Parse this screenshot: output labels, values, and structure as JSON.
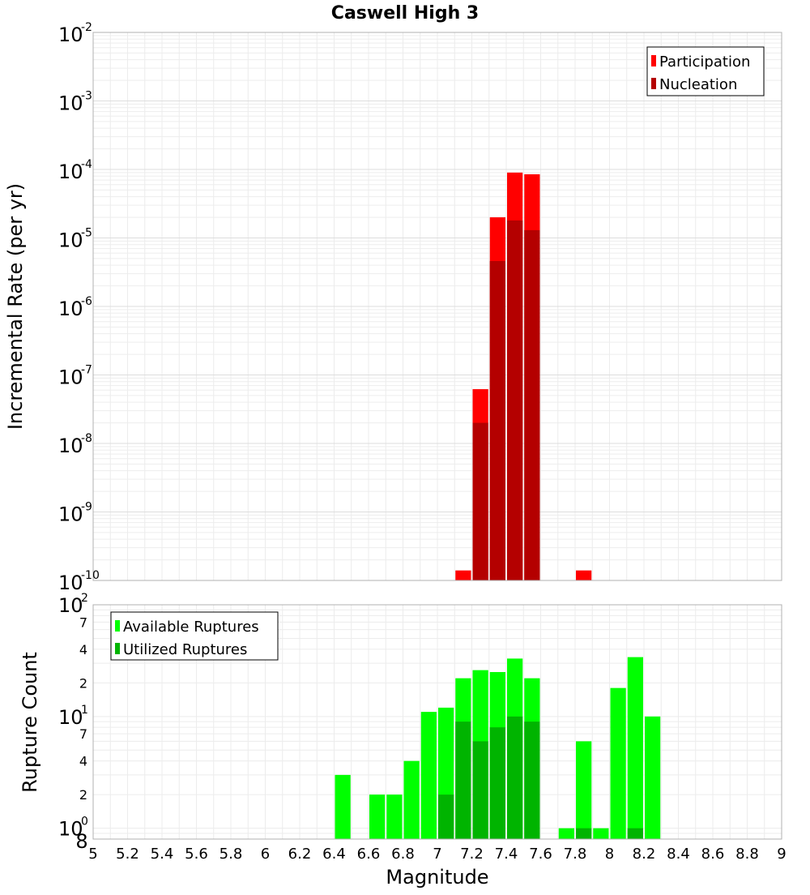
{
  "chart_data": [
    {
      "type": "bar",
      "title": "Caswell High 3",
      "xlabel": "",
      "ylabel": "Incremental Rate (per yr)",
      "yscale": "log",
      "ylim": [
        1e-10,
        0.01
      ],
      "xlim": [
        5,
        9
      ],
      "bin_width": 0.1,
      "y_ticks": [
        {
          "base": "10",
          "exp": "-10"
        },
        {
          "base": "10",
          "exp": "-9"
        },
        {
          "base": "10",
          "exp": "-8"
        },
        {
          "base": "10",
          "exp": "-7"
        },
        {
          "base": "10",
          "exp": "-6"
        },
        {
          "base": "10",
          "exp": "-5"
        },
        {
          "base": "10",
          "exp": "-4"
        },
        {
          "base": "10",
          "exp": "-3"
        },
        {
          "base": "10",
          "exp": "-2"
        }
      ],
      "legend_position": "top-right",
      "series": [
        {
          "name": "Participation",
          "color": "#ff0000",
          "x": [
            7.15,
            7.25,
            7.35,
            7.45,
            7.55,
            7.85
          ],
          "values": [
            1.4e-10,
            6.2e-08,
            2e-05,
            9e-05,
            8.5e-05,
            1.4e-10
          ]
        },
        {
          "name": "Nucleation",
          "color": "#b40000",
          "x": [
            7.25,
            7.35,
            7.45,
            7.55
          ],
          "values": [
            2e-08,
            4.6e-06,
            1.8e-05,
            1.3e-05
          ]
        }
      ]
    },
    {
      "type": "bar",
      "xlabel": "Magnitude",
      "ylabel": "Rupture Count",
      "yscale": "log",
      "ylim": [
        0.8,
        100
      ],
      "xlim": [
        5,
        9
      ],
      "bin_width": 0.1,
      "y_ticks": [
        {
          "value": 1,
          "base": "10",
          "exp": "0"
        },
        {
          "value": 10,
          "base": "10",
          "exp": "1"
        },
        {
          "value": 100,
          "base": "10",
          "exp": "2"
        }
      ],
      "y_minor_ticks": [
        {
          "value": 0.8,
          "label": "8"
        },
        {
          "value": 2,
          "label": "2"
        },
        {
          "value": 4,
          "label": "4"
        },
        {
          "value": 7,
          "label": "7"
        },
        {
          "value": 20,
          "label": "2"
        },
        {
          "value": 40,
          "label": "4"
        },
        {
          "value": 70,
          "label": "7"
        }
      ],
      "x_ticks": [
        "5",
        "5.2",
        "5.4",
        "5.6",
        "5.8",
        "6",
        "6.2",
        "6.4",
        "6.6",
        "6.8",
        "7",
        "7.2",
        "7.4",
        "7.6",
        "7.8",
        "8",
        "8.2",
        "8.4",
        "8.6",
        "8.8",
        "9"
      ],
      "legend_position": "top-left",
      "series": [
        {
          "name": "Available Ruptures",
          "color": "#00ff00",
          "x": [
            6.45,
            6.65,
            6.75,
            6.85,
            6.95,
            7.05,
            7.15,
            7.25,
            7.35,
            7.45,
            7.55,
            7.75,
            7.85,
            7.95,
            8.05,
            8.15,
            8.25
          ],
          "values": [
            3,
            2,
            2,
            4,
            11,
            12,
            22,
            26,
            25,
            33,
            22,
            1,
            6,
            1,
            18,
            34,
            10
          ]
        },
        {
          "name": "Utilized Ruptures",
          "color": "#00b400",
          "x": [
            7.05,
            7.15,
            7.25,
            7.35,
            7.45,
            7.55,
            7.85,
            8.15
          ],
          "values": [
            2,
            9,
            6,
            8,
            10,
            9,
            1,
            1
          ]
        }
      ]
    }
  ]
}
